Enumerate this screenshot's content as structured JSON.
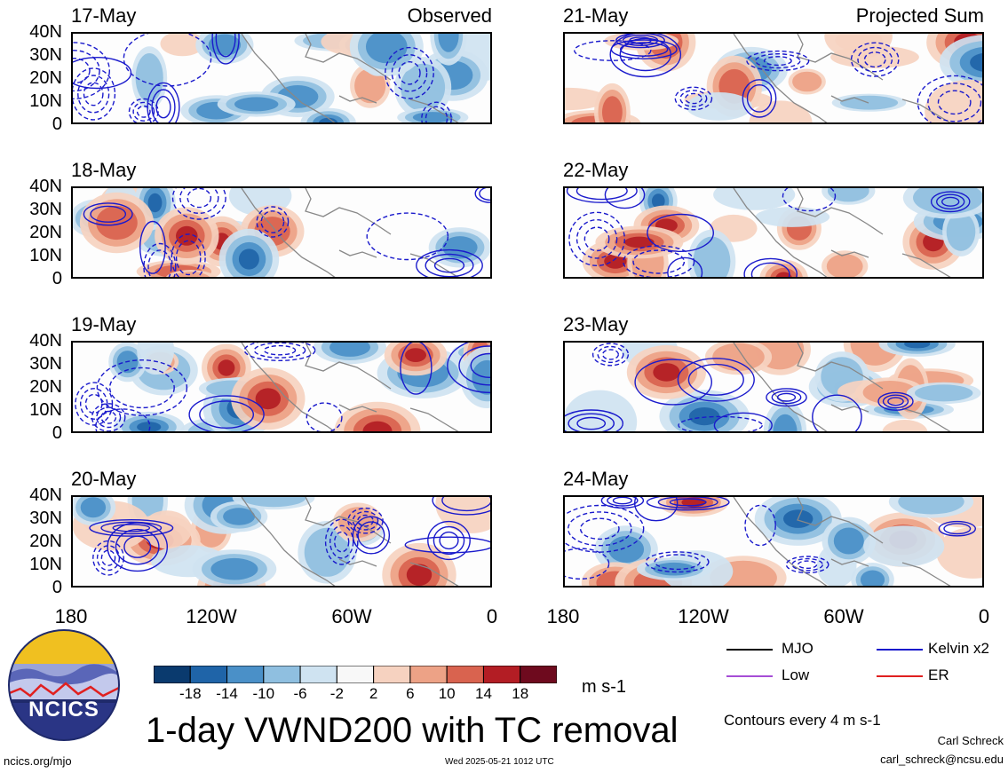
{
  "panels": [
    {
      "date": "17-May",
      "tag": "Observed"
    },
    {
      "date": "18-May",
      "tag": ""
    },
    {
      "date": "19-May",
      "tag": ""
    },
    {
      "date": "20-May",
      "tag": ""
    },
    {
      "date": "21-May",
      "tag": "Projected Sum"
    },
    {
      "date": "22-May",
      "tag": ""
    },
    {
      "date": "23-May",
      "tag": ""
    },
    {
      "date": "24-May",
      "tag": ""
    }
  ],
  "lat_ticks": [
    "40N",
    "30N",
    "20N",
    "10N",
    "0"
  ],
  "lon_ticks": [
    "180",
    "120W",
    "60W",
    "0"
  ],
  "colorbar": {
    "labels": [
      "-18",
      "-14",
      "-10",
      "-6",
      "-2",
      "2",
      "6",
      "10",
      "14",
      "18"
    ],
    "colors": [
      "#0a3a6e",
      "#1f64a8",
      "#4a90c8",
      "#8fbfe0",
      "#cfe3f1",
      "#f8f8f8",
      "#f6d2c0",
      "#eda286",
      "#d9634f",
      "#b31d24",
      "#6e0a1e"
    ],
    "units": "m s-1"
  },
  "legend": {
    "items": [
      {
        "label": "MJO",
        "color": "#000000"
      },
      {
        "label": "Kelvin x2",
        "color": "#1a1acc"
      },
      {
        "label": "Low",
        "color": "#a64dd6"
      },
      {
        "label": "ER",
        "color": "#e02020"
      }
    ],
    "contour_note": "Contours every 4 m s-1"
  },
  "title": "1-day VWND200 with TC removal",
  "logo_text": "NCICS",
  "footer": {
    "url": "ncics.org/mjo",
    "timestamp": "Wed 2025-05-21 1012 UTC",
    "author": "Carl Schreck",
    "email": "carl_schreck@ncsu.edu"
  },
  "colors": {
    "contour": "#1a1acc",
    "coast": "#888888",
    "frame": "#000000"
  }
}
